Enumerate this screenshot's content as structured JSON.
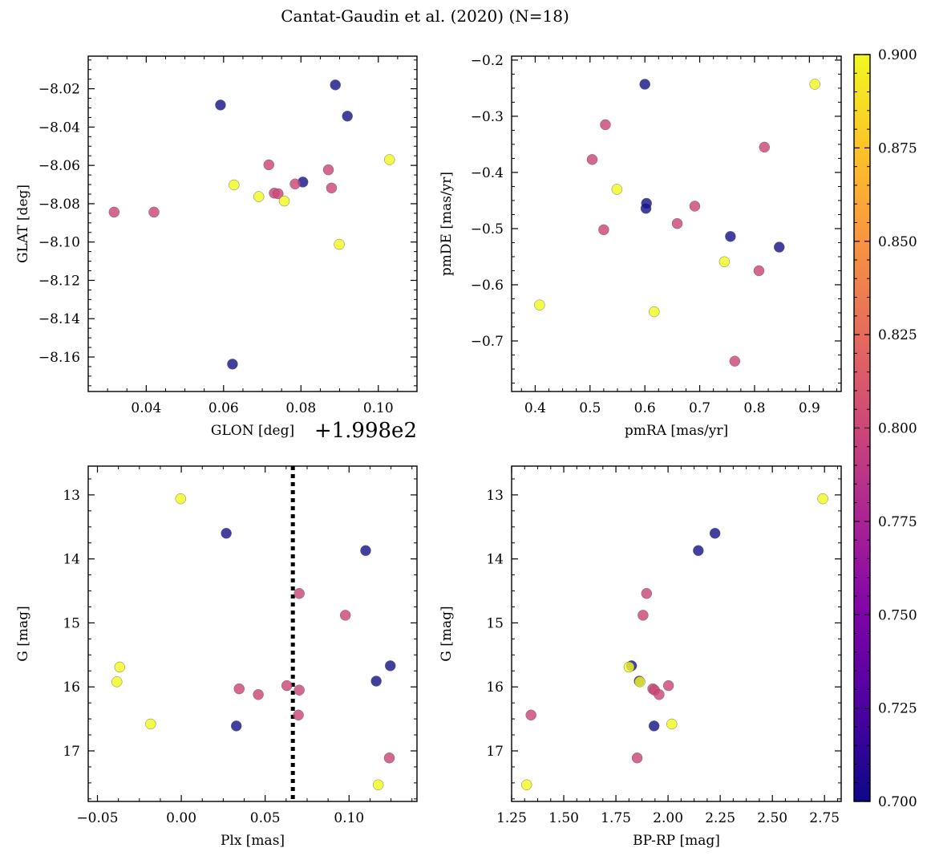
{
  "figure": {
    "suptitle": "Cantat-Gaudin et al. (2020) (N=18)",
    "colorbar": {
      "min": 0.7,
      "max": 0.9,
      "ticks": [
        "0.700",
        "0.725",
        "0.750",
        "0.775",
        "0.800",
        "0.825",
        "0.850",
        "0.875",
        "0.900"
      ],
      "colormap": "plasma"
    }
  },
  "chart_data": [
    {
      "type": "scatter",
      "panel": "top-left",
      "xlabel": "GLON [deg]",
      "ylabel": "GLAT [deg]",
      "x_offset_label": "+1.998e2",
      "xlim": [
        0.025,
        0.11
      ],
      "ylim": [
        -8.178,
        -8.003
      ],
      "y_inverted": false,
      "xticks": [
        0.04,
        0.06,
        0.08,
        0.1
      ],
      "xtick_labels": [
        "0.04",
        "0.06",
        "0.08",
        "0.10"
      ],
      "yticks": [
        -8.16,
        -8.14,
        -8.12,
        -8.1,
        -8.08,
        -8.06,
        -8.04,
        -8.02
      ],
      "ytick_labels": [
        "−8.16",
        "−8.14",
        "−8.12",
        "−8.10",
        "−8.08",
        "−8.06",
        "−8.04",
        "−8.02"
      ],
      "points": [
        {
          "x": 0.0889,
          "y": -8.018,
          "c": 0.7
        },
        {
          "x": 0.0592,
          "y": -8.0285,
          "c": 0.7
        },
        {
          "x": 0.092,
          "y": -8.0343,
          "c": 0.7
        },
        {
          "x": 0.1029,
          "y": -8.057,
          "c": 0.9
        },
        {
          "x": 0.0717,
          "y": -8.0597,
          "c": 0.8
        },
        {
          "x": 0.0871,
          "y": -8.0623,
          "c": 0.8
        },
        {
          "x": 0.0805,
          "y": -8.0687,
          "c": 0.7
        },
        {
          "x": 0.0785,
          "y": -8.0697,
          "c": 0.8
        },
        {
          "x": 0.0627,
          "y": -8.0702,
          "c": 0.9
        },
        {
          "x": 0.0879,
          "y": -8.0718,
          "c": 0.8
        },
        {
          "x": 0.0731,
          "y": -8.0745,
          "c": 0.8
        },
        {
          "x": 0.0741,
          "y": -8.0748,
          "c": 0.8
        },
        {
          "x": 0.0691,
          "y": -8.0763,
          "c": 0.9
        },
        {
          "x": 0.0757,
          "y": -8.0786,
          "c": 0.9
        },
        {
          "x": 0.0317,
          "y": -8.0844,
          "c": 0.8
        },
        {
          "x": 0.042,
          "y": -8.0844,
          "c": 0.8
        },
        {
          "x": 0.0899,
          "y": -8.1012,
          "c": 0.9
        },
        {
          "x": 0.0623,
          "y": -8.1637,
          "c": 0.7
        }
      ]
    },
    {
      "type": "scatter",
      "panel": "top-right",
      "xlabel": "pmRA [mas/yr]",
      "ylabel": "pmDE [mas/yr]",
      "xlim": [
        0.357,
        0.958
      ],
      "ylim": [
        -0.79,
        -0.193
      ],
      "y_inverted": false,
      "xticks": [
        0.4,
        0.5,
        0.6,
        0.7,
        0.8,
        0.9
      ],
      "xtick_labels": [
        "0.4",
        "0.5",
        "0.6",
        "0.7",
        "0.8",
        "0.9"
      ],
      "yticks": [
        -0.7,
        -0.6,
        -0.5,
        -0.4,
        -0.3,
        -0.2
      ],
      "ytick_labels": [
        "−0.7",
        "−0.6",
        "−0.5",
        "−0.4",
        "−0.3",
        "−0.2"
      ],
      "points": [
        {
          "x": 0.6,
          "y": -0.243,
          "c": 0.7
        },
        {
          "x": 0.91,
          "y": -0.243,
          "c": 0.9
        },
        {
          "x": 0.528,
          "y": -0.315,
          "c": 0.8
        },
        {
          "x": 0.818,
          "y": -0.355,
          "c": 0.8
        },
        {
          "x": 0.504,
          "y": -0.377,
          "c": 0.8
        },
        {
          "x": 0.549,
          "y": -0.43,
          "c": 0.9
        },
        {
          "x": 0.603,
          "y": -0.455,
          "c": 0.7
        },
        {
          "x": 0.602,
          "y": -0.464,
          "c": 0.7
        },
        {
          "x": 0.691,
          "y": -0.46,
          "c": 0.8
        },
        {
          "x": 0.659,
          "y": -0.491,
          "c": 0.8
        },
        {
          "x": 0.525,
          "y": -0.502,
          "c": 0.8
        },
        {
          "x": 0.756,
          "y": -0.514,
          "c": 0.7
        },
        {
          "x": 0.845,
          "y": -0.533,
          "c": 0.7
        },
        {
          "x": 0.745,
          "y": -0.559,
          "c": 0.9
        },
        {
          "x": 0.808,
          "y": -0.575,
          "c": 0.8
        },
        {
          "x": 0.408,
          "y": -0.636,
          "c": 0.9
        },
        {
          "x": 0.617,
          "y": -0.648,
          "c": 0.9
        },
        {
          "x": 0.764,
          "y": -0.736,
          "c": 0.8
        }
      ]
    },
    {
      "type": "scatter",
      "panel": "bottom-left",
      "xlabel": "Plx [mas]",
      "ylabel": "G [mag]",
      "xlim": [
        -0.0555,
        0.1405
      ],
      "ylim": [
        17.79,
        12.55
      ],
      "y_inverted": true,
      "vline": {
        "x": 0.0665,
        "style": "dotted"
      },
      "xticks": [
        -0.05,
        0.0,
        0.05,
        0.1
      ],
      "xtick_labels": [
        "−0.05",
        "0.00",
        "0.05",
        "0.10"
      ],
      "yticks": [
        13,
        14,
        15,
        16,
        17
      ],
      "ytick_labels": [
        "13",
        "14",
        "15",
        "16",
        "17"
      ],
      "points": [
        {
          "x": -0.0004,
          "y": 13.06,
          "c": 0.9
        },
        {
          "x": 0.0268,
          "y": 13.6,
          "c": 0.7
        },
        {
          "x": 0.1099,
          "y": 13.87,
          "c": 0.7
        },
        {
          "x": 0.0703,
          "y": 14.54,
          "c": 0.8
        },
        {
          "x": 0.0978,
          "y": 14.88,
          "c": 0.8
        },
        {
          "x": 0.1246,
          "y": 15.67,
          "c": 0.7
        },
        {
          "x": -0.0367,
          "y": 15.69,
          "c": 0.9
        },
        {
          "x": -0.0384,
          "y": 15.92,
          "c": 0.9
        },
        {
          "x": 0.1162,
          "y": 15.91,
          "c": 0.7
        },
        {
          "x": 0.0629,
          "y": 15.98,
          "c": 0.8
        },
        {
          "x": 0.0345,
          "y": 16.03,
          "c": 0.8
        },
        {
          "x": 0.0703,
          "y": 16.05,
          "c": 0.8
        },
        {
          "x": 0.0459,
          "y": 16.12,
          "c": 0.8
        },
        {
          "x": 0.0698,
          "y": 16.44,
          "c": 0.8
        },
        {
          "x": -0.0183,
          "y": 16.58,
          "c": 0.9
        },
        {
          "x": 0.0328,
          "y": 16.61,
          "c": 0.7
        },
        {
          "x": 0.124,
          "y": 17.11,
          "c": 0.8
        },
        {
          "x": 0.1174,
          "y": 17.53,
          "c": 0.9
        }
      ]
    },
    {
      "type": "scatter",
      "panel": "bottom-right",
      "xlabel": "BP-RP [mag]",
      "ylabel": "G [mag]",
      "xlim": [
        1.25,
        2.83
      ],
      "ylim": [
        17.79,
        12.55
      ],
      "y_inverted": true,
      "xticks": [
        1.25,
        1.5,
        1.75,
        2.0,
        2.25,
        2.5,
        2.75
      ],
      "xtick_labels": [
        "1.25",
        "1.50",
        "1.75",
        "2.00",
        "2.25",
        "2.50",
        "2.75"
      ],
      "yticks": [
        13,
        14,
        15,
        16,
        17
      ],
      "ytick_labels": [
        "13",
        "14",
        "15",
        "16",
        "17"
      ],
      "points": [
        {
          "x": 2.742,
          "y": 13.06,
          "c": 0.9
        },
        {
          "x": 2.225,
          "y": 13.6,
          "c": 0.7
        },
        {
          "x": 2.145,
          "y": 13.87,
          "c": 0.7
        },
        {
          "x": 1.897,
          "y": 14.54,
          "c": 0.8
        },
        {
          "x": 1.88,
          "y": 14.88,
          "c": 0.8
        },
        {
          "x": 1.825,
          "y": 15.67,
          "c": 0.7
        },
        {
          "x": 1.813,
          "y": 15.69,
          "c": 0.9
        },
        {
          "x": 1.862,
          "y": 15.91,
          "c": 0.7
        },
        {
          "x": 1.865,
          "y": 15.92,
          "c": 0.9
        },
        {
          "x": 2.002,
          "y": 15.98,
          "c": 0.8
        },
        {
          "x": 1.927,
          "y": 16.03,
          "c": 0.8
        },
        {
          "x": 1.935,
          "y": 16.05,
          "c": 0.8
        },
        {
          "x": 1.957,
          "y": 16.12,
          "c": 0.8
        },
        {
          "x": 1.343,
          "y": 16.44,
          "c": 0.8
        },
        {
          "x": 2.018,
          "y": 16.58,
          "c": 0.9
        },
        {
          "x": 1.933,
          "y": 16.61,
          "c": 0.7
        },
        {
          "x": 1.852,
          "y": 17.11,
          "c": 0.8
        },
        {
          "x": 1.322,
          "y": 17.53,
          "c": 0.9
        }
      ]
    }
  ]
}
